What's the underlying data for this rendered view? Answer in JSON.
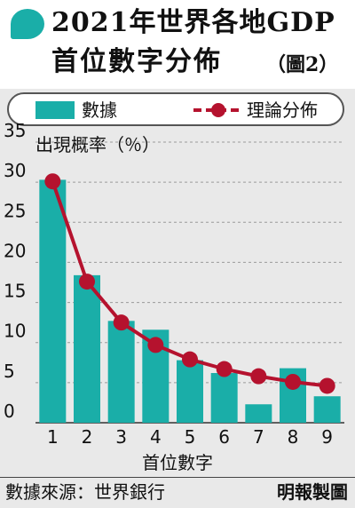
{
  "header": {
    "title_line1": "2021年世界各地GDP",
    "title_line2": "首位數字分佈",
    "figure_no": "（圖2）"
  },
  "legend": {
    "bar_label": "數據",
    "line_label": "理論分佈"
  },
  "colors": {
    "bar": "#1aaea8",
    "line": "#b5122e",
    "grid": "#9a9a9a"
  },
  "chart_data": {
    "type": "bar",
    "ylabel": "出現概率（％）",
    "xlabel": "首位數字",
    "categories": [
      "1",
      "2",
      "3",
      "4",
      "5",
      "6",
      "7",
      "8",
      "9"
    ],
    "ylim": [
      0,
      35
    ],
    "yticks": [
      "0",
      "5",
      "10",
      "15",
      "20",
      "25",
      "30",
      "35"
    ],
    "grid": true,
    "legend_position": "top",
    "series": [
      {
        "name": "數據",
        "type": "bar",
        "values": [
          30.3,
          18.4,
          12.7,
          11.6,
          7.8,
          6.2,
          2.3,
          6.8,
          3.3
        ]
      },
      {
        "name": "理論分佈",
        "type": "line",
        "values": [
          30.1,
          17.6,
          12.5,
          9.7,
          7.9,
          6.7,
          5.8,
          5.1,
          4.6
        ]
      }
    ]
  },
  "footer": {
    "source": "數據來源：世界銀行",
    "credit": "明報製圖"
  }
}
